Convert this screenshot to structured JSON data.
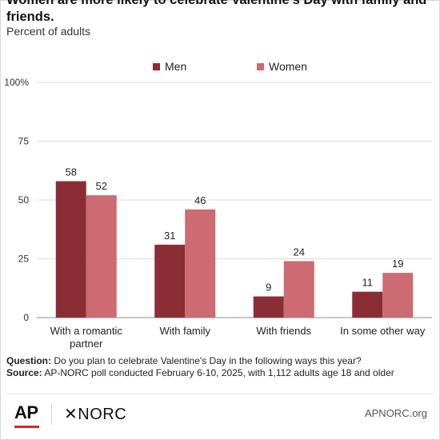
{
  "chart_data": {
    "type": "bar",
    "title": "Women are more likely to celebrate Valentine's Day with family and friends.",
    "subtitle": "Percent of adults",
    "categories": [
      [
        "With a romantic",
        "partner"
      ],
      [
        "With family"
      ],
      [
        "With friends"
      ],
      [
        "In some other way"
      ]
    ],
    "series": [
      {
        "name": "Men",
        "color": "#8b2d35",
        "values": [
          58,
          31,
          9,
          11
        ]
      },
      {
        "name": "Women",
        "color": "#cc6b71",
        "values": [
          52,
          46,
          24,
          19
        ]
      }
    ],
    "yticks": [
      "0",
      "25",
      "50",
      "75",
      "100%"
    ],
    "ylim": [
      0,
      100
    ],
    "grid": true,
    "legend": "top-center"
  },
  "notes": {
    "question_label": "Question:",
    "question_text": " Do you plan to celebrate Valentine's Day in the following ways this year?",
    "source_label": "Source:",
    "source_text": " AP-NORC poll conducted February 6-10, 2025, with 1,112 adults age 18 and older"
  },
  "footer": {
    "ap_logo": "AP",
    "norc_logo": "✕NORC",
    "site": "APNORC.org"
  }
}
